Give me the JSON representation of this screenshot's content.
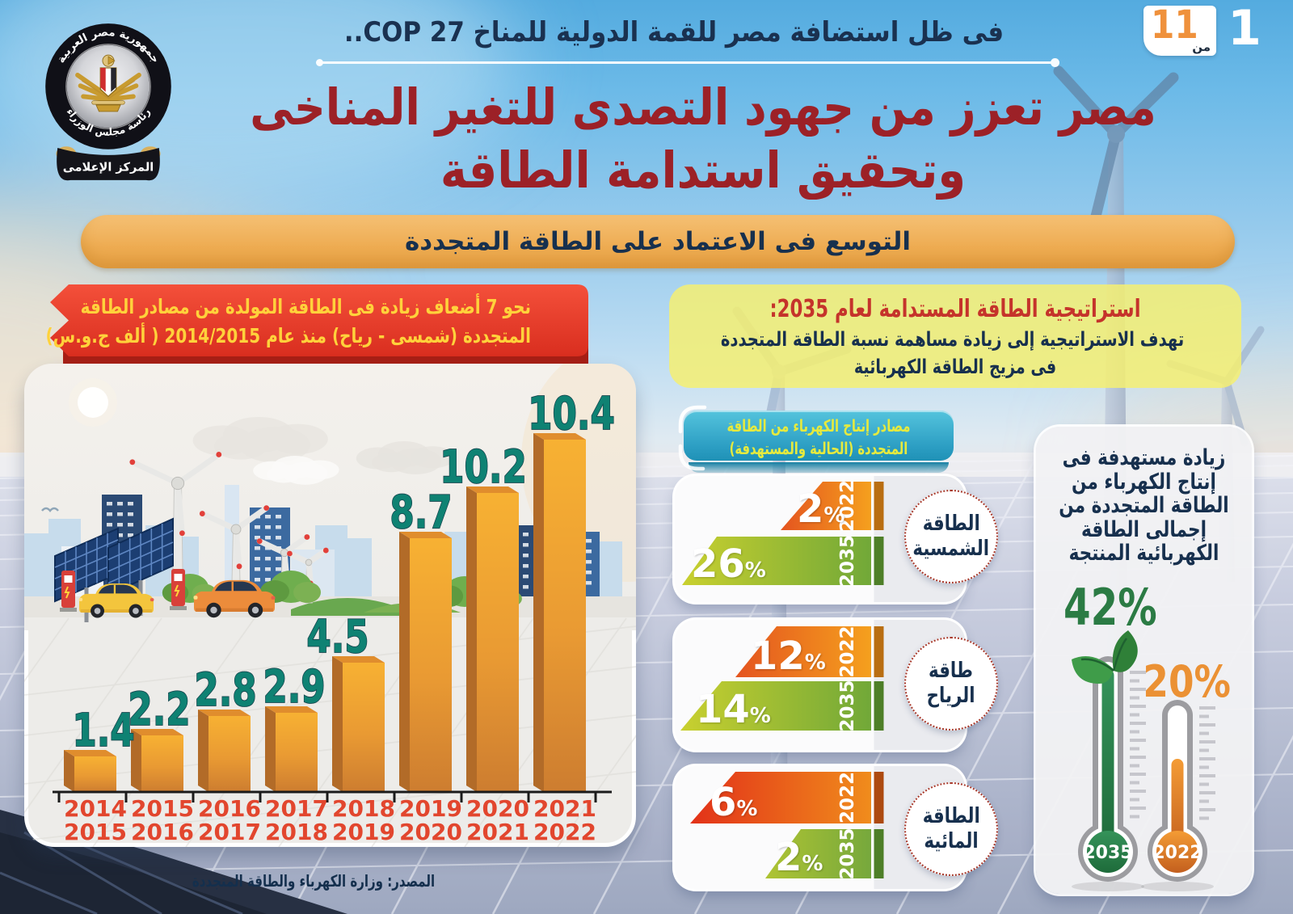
{
  "page": {
    "current": "1",
    "total": "11",
    "of_label": "من"
  },
  "logo": {
    "ring_top": "جمهورية مصر العربية",
    "ring_bottom": "رئاسة مجلس الوزراء",
    "ribbon": "المركز الإعلامى"
  },
  "header": {
    "kicker": "فى ظل استضافة مصر للقمة الدولية للمناخ COP 27..",
    "title_line1": "مصر تعزز من جهود التصدى للتغير المناخى",
    "title_line2": "وتحقيق استدامة الطاقة",
    "section_banner": "التوسع فى الاعتماد على الطاقة المتجددة"
  },
  "generation_chart": {
    "ribbon_line1": "نحو 7 أضعاف زيادة فى الطاقة المولدة من مصادر الطاقة",
    "ribbon_line2": "المتجددة (شمسى - رياح) منذ عام 2014/2015 ( ألف ج.و.س)",
    "source": "المصدر: وزارة الكهرباء والطاقة المتجددة"
  },
  "strategy": {
    "heading": "استراتيجية الطاقة المستدامة لعام 2035:",
    "line1": "تهدف الاستراتيجية إلى زيادة مساهمة نسبة الطاقة المتجددة",
    "line2": "فى مزيج الطاقة الكهربائية"
  },
  "mix_banner": {
    "line1": "مصادر إنتاج الكهرباء من الطاقة",
    "line2": "المتجددة (الحالية والمستهدفة)"
  },
  "target_card": {
    "lines": [
      "زيادة مستهدفة فى",
      "إنتاج الكهرباء من",
      "الطاقة المتجددة من",
      "إجمالى الطاقة",
      "الكهربائية المنتجة"
    ]
  },
  "chart_data": [
    {
      "type": "bar",
      "title": "نحو 7 أضعاف زيادة فى الطاقة المولدة من مصادر الطاقة المتجددة (شمسى - رياح) منذ عام 2014/2015 ( ألف ج.و.س)",
      "categories": [
        [
          "2014",
          "2015"
        ],
        [
          "2015",
          "2016"
        ],
        [
          "2016",
          "2017"
        ],
        [
          "2017",
          "2018"
        ],
        [
          "2018",
          "2019"
        ],
        [
          "2019",
          "2020"
        ],
        [
          "2020",
          "2021"
        ],
        [
          "2021",
          "2022"
        ]
      ],
      "values": [
        1.4,
        2.2,
        2.8,
        2.9,
        4.5,
        8.7,
        10.2,
        10.4
      ],
      "ylabel": "ألف ج.و.س",
      "xlabel": "",
      "grid": false,
      "legend": "none",
      "bar_color": "#eda243",
      "value_label_color": "#12836f",
      "source": "المصدر: وزارة الكهرباء والطاقة المتجددة"
    },
    {
      "type": "bar",
      "title": "مصادر إنتاج الكهرباء من الطاقة المتجددة (الحالية والمستهدفة)",
      "categories": [
        "الطاقة الشمسية",
        "طاقة الرياح",
        "الطاقة المائية"
      ],
      "series": [
        {
          "name": "2022",
          "values": [
            2,
            12,
            6
          ],
          "color": "orange-red"
        },
        {
          "name": "2035",
          "values": [
            26,
            14,
            2
          ],
          "color": "green"
        }
      ],
      "unit": "%",
      "value_labels": [
        [
          "2%",
          "26%"
        ],
        [
          "12%",
          "14%"
        ],
        [
          "6%",
          "2%"
        ]
      ]
    },
    {
      "type": "bar",
      "title": "زيادة مستهدفة فى إنتاج الكهرباء من الطاقة المتجددة من إجمالى الطاقة الكهربائية المنتجة",
      "categories": [
        "2035",
        "2022"
      ],
      "values": [
        42,
        20
      ],
      "value_labels": [
        "42%",
        "20%"
      ],
      "unit": "%",
      "colors": [
        "#2b7b44",
        "#eb9134"
      ]
    }
  ]
}
